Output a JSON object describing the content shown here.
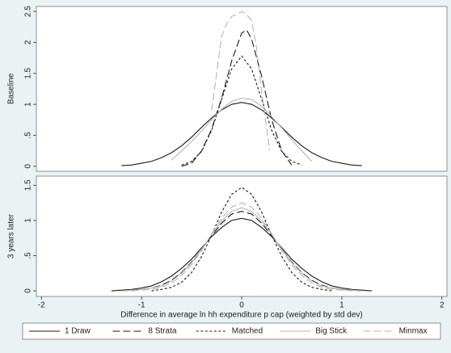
{
  "chart_data": [
    {
      "type": "line",
      "ylabel": "Baseline",
      "xlim": [
        -2.05,
        2.05
      ],
      "ylim": [
        -0.08,
        2.58
      ],
      "yticks": [
        0,
        {
          "value": 0.5,
          "label": ".5"
        },
        1,
        1.5,
        2,
        2.5
      ],
      "series": [
        {
          "name": "1 Draw",
          "color": "#1a1a1a",
          "line_style": "solid",
          "x": [
            -1.2,
            -1.1,
            -1.0,
            -0.9,
            -0.8,
            -0.7,
            -0.6,
            -0.5,
            -0.4,
            -0.3,
            -0.2,
            -0.1,
            0,
            0.1,
            0.2,
            0.3,
            0.4,
            0.5,
            0.6,
            0.7,
            0.8,
            0.9,
            1.0,
            1.1,
            1.2
          ],
          "values": [
            0.01,
            0.02,
            0.05,
            0.08,
            0.14,
            0.22,
            0.33,
            0.47,
            0.63,
            0.78,
            0.91,
            1.0,
            1.03,
            1.0,
            0.91,
            0.78,
            0.63,
            0.47,
            0.33,
            0.22,
            0.14,
            0.08,
            0.05,
            0.02,
            0.01
          ]
        },
        {
          "name": "8 Strata",
          "color": "#1a1a1a",
          "line_style": "longdash",
          "x": [
            -0.6,
            -0.5,
            -0.4,
            -0.3,
            -0.2,
            -0.1,
            0,
            0.05,
            0.1,
            0.2,
            0.3,
            0.4,
            0.5
          ],
          "values": [
            0,
            0.05,
            0.25,
            0.6,
            1.1,
            1.7,
            2.15,
            2.2,
            2.05,
            1.45,
            0.75,
            0.25,
            0.02
          ]
        },
        {
          "name": "Matched",
          "color": "#1a1a1a",
          "line_style": "shortdash",
          "x": [
            -0.6,
            -0.5,
            -0.4,
            -0.3,
            -0.2,
            -0.1,
            0,
            0.1,
            0.2,
            0.3,
            0.4,
            0.5,
            0.6
          ],
          "values": [
            0.02,
            0.08,
            0.24,
            0.58,
            1.08,
            1.57,
            1.78,
            1.57,
            1.08,
            0.58,
            0.24,
            0.08,
            0.02
          ]
        },
        {
          "name": "Big Stick",
          "color": "#b4b4b4",
          "line_style": "solid",
          "x": [
            -0.7,
            -0.6,
            -0.5,
            -0.4,
            -0.3,
            -0.2,
            -0.1,
            0,
            0.1,
            0.2,
            0.3,
            0.4,
            0.5,
            0.6,
            0.7
          ],
          "values": [
            0.1,
            0.25,
            0.4,
            0.57,
            0.75,
            0.92,
            1.05,
            1.1,
            1.08,
            0.97,
            0.8,
            0.62,
            0.43,
            0.25,
            0.08
          ]
        },
        {
          "name": "Minmax",
          "color": "#b4b4b4",
          "line_style": "longdash",
          "x": [
            -0.3,
            -0.25,
            -0.2,
            -0.15,
            -0.1,
            -0.05,
            0,
            0.05,
            0.1,
            0.15,
            0.2,
            0.25,
            0.28
          ],
          "values": [
            0.9,
            1.5,
            2.1,
            2.3,
            2.42,
            2.45,
            2.5,
            2.45,
            2.35,
            1.9,
            1.2,
            0.6,
            0.25
          ]
        }
      ]
    },
    {
      "type": "line",
      "ylabel": "3 years later",
      "xlabel": "Difference in average ln hh expenditure p cap (weighted by std dev)",
      "xlim": [
        -2.05,
        2.05
      ],
      "xticks": [
        -2,
        -1,
        0,
        1,
        2
      ],
      "ylim": [
        -0.08,
        1.63
      ],
      "yticks": [
        0,
        {
          "value": 0.5,
          "label": ".5"
        },
        1,
        1.5
      ],
      "series": [
        {
          "color": "#1a1a1a",
          "line_style": "solid",
          "x": [
            -1.3,
            -1.2,
            -1.1,
            -1.0,
            -0.9,
            -0.8,
            -0.7,
            -0.6,
            -0.5,
            -0.4,
            -0.3,
            -0.2,
            -0.1,
            0,
            0.1,
            0.2,
            0.3,
            0.4,
            0.5,
            0.6,
            0.7,
            0.8,
            0.9,
            1.0,
            1.1,
            1.2,
            1.3
          ],
          "values": [
            0,
            0.01,
            0.02,
            0.04,
            0.07,
            0.13,
            0.21,
            0.32,
            0.45,
            0.61,
            0.77,
            0.9,
            1.0,
            1.03,
            1.0,
            0.9,
            0.77,
            0.61,
            0.45,
            0.32,
            0.21,
            0.13,
            0.07,
            0.04,
            0.02,
            0.01,
            0
          ]
        },
        {
          "color": "#1a1a1a",
          "line_style": "longdash",
          "x": [
            -1.2,
            -1.1,
            -1.0,
            -0.9,
            -0.8,
            -0.7,
            -0.6,
            -0.5,
            -0.4,
            -0.3,
            -0.2,
            -0.1,
            0,
            0.1,
            0.2,
            0.3,
            0.4,
            0.5,
            0.6,
            0.7,
            0.8,
            0.9,
            1.0,
            1.1,
            1.2
          ],
          "values": [
            0,
            0.01,
            0.02,
            0.04,
            0.08,
            0.15,
            0.26,
            0.41,
            0.59,
            0.78,
            0.96,
            1.09,
            1.13,
            1.09,
            0.96,
            0.78,
            0.59,
            0.41,
            0.26,
            0.15,
            0.08,
            0.04,
            0.02,
            0.01,
            0
          ]
        },
        {
          "color": "#1a1a1a",
          "line_style": "shortdash",
          "x": [
            -0.9,
            -0.8,
            -0.7,
            -0.6,
            -0.5,
            -0.4,
            -0.3,
            -0.2,
            -0.1,
            0,
            0.1,
            0.2,
            0.3,
            0.4,
            0.5,
            0.6,
            0.7,
            0.8,
            0.9
          ],
          "values": [
            0,
            0.02,
            0.05,
            0.12,
            0.26,
            0.49,
            0.79,
            1.12,
            1.37,
            1.47,
            1.37,
            1.12,
            0.79,
            0.49,
            0.26,
            0.12,
            0.05,
            0.02,
            0
          ]
        },
        {
          "color": "#b4b4b4",
          "line_style": "solid",
          "x": [
            -1.2,
            -1.1,
            -1.0,
            -0.9,
            -0.8,
            -0.7,
            -0.6,
            -0.5,
            -0.4,
            -0.3,
            -0.2,
            -0.1,
            0,
            0.1,
            0.2,
            0.3,
            0.4,
            0.5,
            0.6,
            0.7,
            0.8,
            0.9,
            1.0,
            1.1,
            1.2
          ],
          "values": [
            0,
            0.01,
            0.02,
            0.04,
            0.07,
            0.14,
            0.25,
            0.4,
            0.59,
            0.8,
            0.99,
            1.13,
            1.18,
            1.13,
            0.99,
            0.8,
            0.59,
            0.4,
            0.25,
            0.14,
            0.07,
            0.04,
            0.02,
            0.01,
            0
          ]
        },
        {
          "color": "#b4b4b4",
          "line_style": "longdash",
          "x": [
            -1.1,
            -1.0,
            -0.9,
            -0.8,
            -0.7,
            -0.6,
            -0.5,
            -0.4,
            -0.3,
            -0.2,
            -0.1,
            0,
            0.1,
            0.2,
            0.3,
            0.4,
            0.5,
            0.6,
            0.7,
            0.8,
            0.9,
            1.0,
            1.1
          ],
          "values": [
            0,
            0.01,
            0.02,
            0.05,
            0.11,
            0.22,
            0.37,
            0.57,
            0.81,
            1.03,
            1.19,
            1.25,
            1.19,
            1.03,
            0.81,
            0.57,
            0.37,
            0.22,
            0.11,
            0.05,
            0.02,
            0.01,
            0
          ]
        }
      ]
    }
  ]
}
